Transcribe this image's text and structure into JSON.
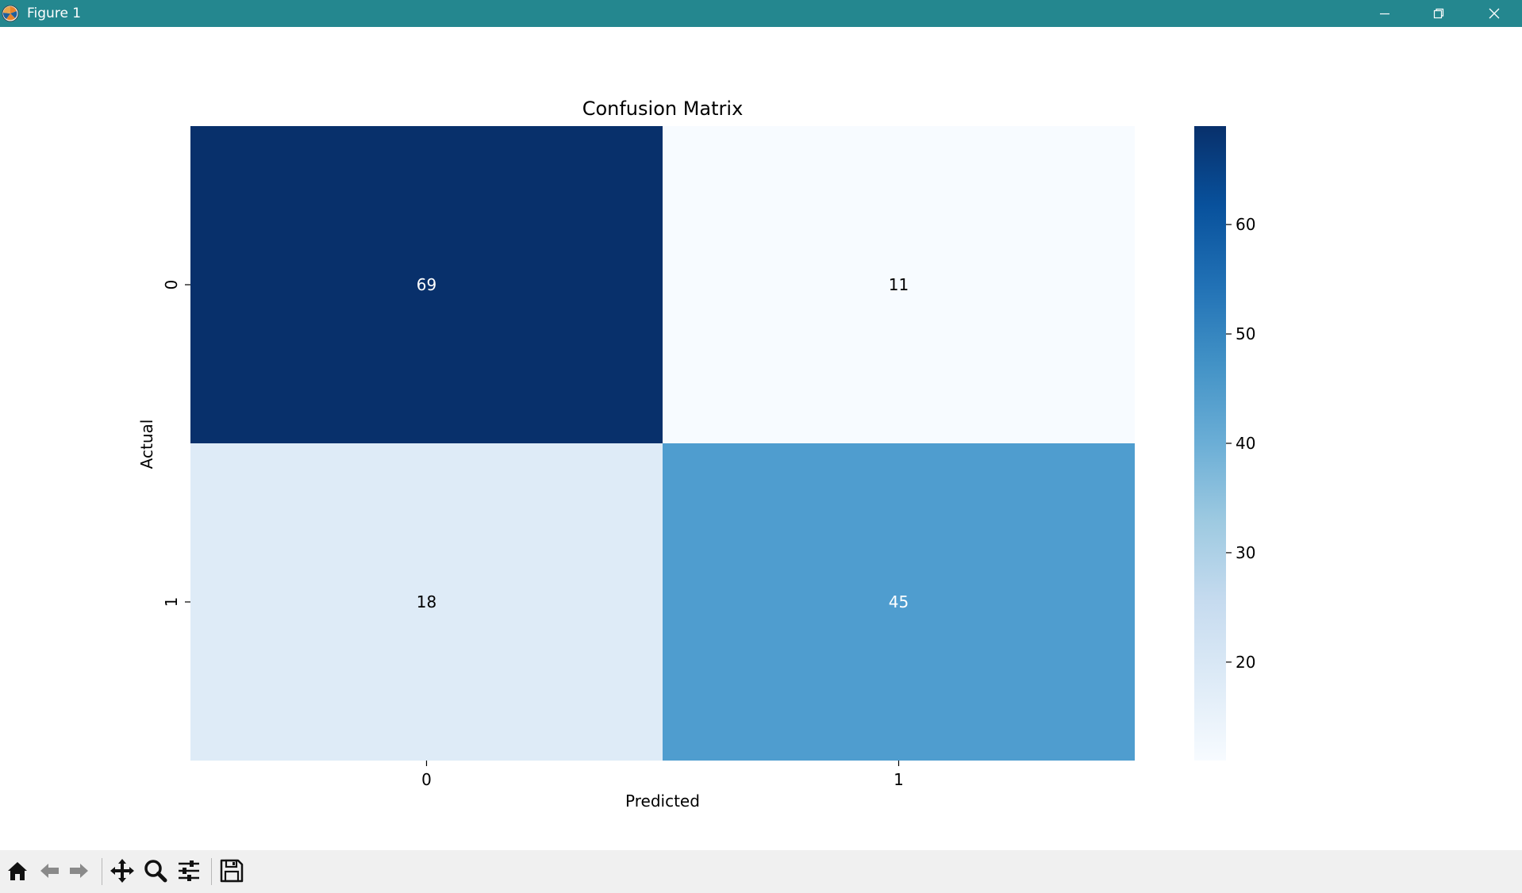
{
  "window": {
    "title": "Figure 1",
    "titlebar_color": "#24878f",
    "controls": [
      "minimize-icon",
      "restore-icon",
      "close-icon"
    ]
  },
  "toolbar": {
    "items": [
      "home-icon",
      "back-arrow-icon",
      "forward-arrow-icon",
      "pan-icon",
      "zoom-icon",
      "configure-subplots-icon",
      "save-icon"
    ]
  },
  "chart_data": {
    "type": "heatmap",
    "title": "Confusion Matrix",
    "xlabel": "Predicted",
    "ylabel": "Actual",
    "x_categories": [
      "0",
      "1"
    ],
    "y_categories": [
      "0",
      "1"
    ],
    "values": [
      [
        69,
        11
      ],
      [
        18,
        45
      ]
    ],
    "annotations": [
      [
        "69",
        "11"
      ],
      [
        "18",
        "45"
      ]
    ],
    "colormap": "Blues",
    "cell_colors": [
      [
        "#08306b",
        "#f7fbff"
      ],
      [
        "#deebf7",
        "#4f9dcf"
      ]
    ],
    "colorbar": {
      "range": [
        11,
        69
      ],
      "ticks": [
        20,
        30,
        40,
        50,
        60
      ],
      "tick_labels": [
        "20",
        "30",
        "40",
        "50",
        "60"
      ]
    }
  }
}
